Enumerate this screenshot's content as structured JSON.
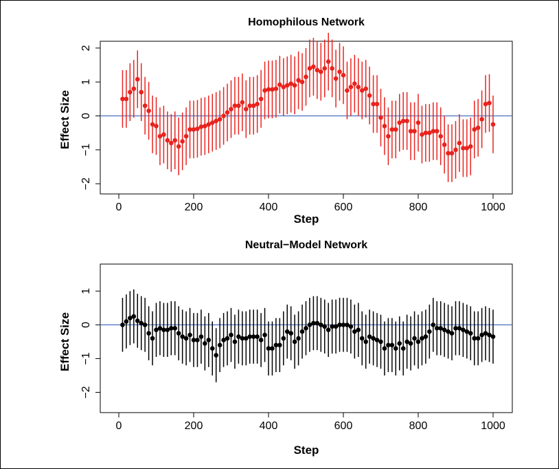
{
  "colors": {
    "border": "#000000",
    "zero_line": "#4a6fc0",
    "panel1_series": "#e8231e",
    "panel2_series": "#000000"
  },
  "chart_data": [
    {
      "type": "scatter",
      "title": "Homophilous Network",
      "xlabel": "Step",
      "ylabel": "Effect Size",
      "xlim": [
        0,
        1000
      ],
      "ylim": [
        -2.3,
        2.2
      ],
      "xticks": [
        "0",
        "200",
        "400",
        "600",
        "800",
        "1000"
      ],
      "yticks": [
        "2",
        "1",
        "0",
        "−1",
        "−2"
      ],
      "grid": false,
      "reference_line_y": 0,
      "error_half_width": 0.85,
      "x": [
        10,
        20,
        30,
        40,
        50,
        60,
        70,
        80,
        90,
        100,
        110,
        120,
        130,
        140,
        150,
        160,
        170,
        180,
        190,
        200,
        210,
        220,
        230,
        240,
        250,
        260,
        270,
        280,
        290,
        300,
        310,
        320,
        330,
        340,
        350,
        360,
        370,
        380,
        390,
        400,
        410,
        420,
        430,
        440,
        450,
        460,
        470,
        480,
        490,
        500,
        510,
        520,
        530,
        540,
        550,
        560,
        570,
        580,
        590,
        600,
        610,
        620,
        630,
        640,
        650,
        660,
        670,
        680,
        690,
        700,
        710,
        720,
        730,
        740,
        750,
        760,
        770,
        780,
        790,
        800,
        810,
        820,
        830,
        840,
        850,
        860,
        870,
        880,
        890,
        900,
        910,
        920,
        930,
        940,
        950,
        960,
        970,
        980,
        990,
        1000
      ],
      "y": [
        0.5,
        0.5,
        0.7,
        0.8,
        1.08,
        0.7,
        0.3,
        0.15,
        -0.25,
        -0.3,
        -0.6,
        -0.55,
        -0.72,
        -0.8,
        -0.72,
        -0.9,
        -0.75,
        -0.6,
        -0.4,
        -0.4,
        -0.38,
        -0.32,
        -0.3,
        -0.25,
        -0.2,
        -0.15,
        -0.1,
        0.0,
        0.1,
        0.2,
        0.3,
        0.3,
        0.4,
        0.2,
        0.3,
        0.3,
        0.35,
        0.5,
        0.75,
        0.78,
        0.78,
        0.8,
        0.92,
        0.85,
        0.9,
        0.95,
        0.9,
        1.05,
        1.0,
        1.15,
        1.4,
        1.45,
        1.35,
        1.3,
        1.4,
        1.6,
        1.4,
        1.1,
        1.3,
        1.2,
        0.75,
        0.85,
        0.95,
        0.85,
        0.75,
        0.8,
        0.6,
        0.35,
        0.35,
        -0.05,
        -0.3,
        -0.6,
        -0.4,
        -0.4,
        -0.2,
        -0.15,
        -0.15,
        -0.45,
        -0.45,
        -0.2,
        -0.55,
        -0.5,
        -0.5,
        -0.45,
        -0.45,
        -0.6,
        -0.85,
        -1.1,
        -1.1,
        -1.0,
        -0.8,
        -0.95,
        -0.95,
        -0.9,
        -0.4,
        -0.35,
        -0.1,
        0.35,
        0.38,
        -0.25
      ]
    },
    {
      "type": "scatter",
      "title": "Neutral−Model Network",
      "xlabel": "Step",
      "ylabel": "Effect Size",
      "xlim": [
        0,
        1000
      ],
      "ylim": [
        -2.6,
        1.8
      ],
      "xticks": [
        "0",
        "200",
        "400",
        "600",
        "800",
        "1000"
      ],
      "yticks": [
        "1",
        "0",
        "−1",
        "−2"
      ],
      "grid": false,
      "reference_line_y": 0,
      "error_half_width": 0.8,
      "x": [
        10,
        20,
        30,
        40,
        50,
        60,
        70,
        80,
        90,
        100,
        110,
        120,
        130,
        140,
        150,
        160,
        170,
        180,
        190,
        200,
        210,
        220,
        230,
        240,
        250,
        260,
        270,
        280,
        290,
        300,
        310,
        320,
        330,
        340,
        350,
        360,
        370,
        380,
        390,
        400,
        410,
        420,
        430,
        440,
        450,
        460,
        470,
        480,
        490,
        500,
        510,
        520,
        530,
        540,
        550,
        560,
        570,
        580,
        590,
        600,
        610,
        620,
        630,
        640,
        650,
        660,
        670,
        680,
        690,
        700,
        710,
        720,
        730,
        740,
        750,
        760,
        770,
        780,
        790,
        800,
        810,
        820,
        830,
        840,
        850,
        860,
        870,
        880,
        890,
        900,
        910,
        920,
        930,
        940,
        950,
        960,
        970,
        980,
        990,
        1000
      ],
      "y": [
        0.0,
        0.1,
        0.2,
        0.25,
        0.12,
        0.05,
        0.0,
        -0.25,
        -0.4,
        -0.15,
        -0.1,
        -0.15,
        -0.15,
        -0.1,
        -0.1,
        -0.25,
        -0.35,
        -0.4,
        -0.3,
        -0.45,
        -0.45,
        -0.35,
        -0.55,
        -0.45,
        -0.7,
        -0.9,
        -0.6,
        -0.45,
        -0.4,
        -0.3,
        -0.5,
        -0.35,
        -0.4,
        -0.4,
        -0.35,
        -0.35,
        -0.35,
        -0.45,
        -0.3,
        -0.7,
        -0.7,
        -0.6,
        -0.6,
        -0.4,
        -0.2,
        -0.25,
        -0.5,
        -0.4,
        -0.2,
        -0.1,
        0.0,
        0.05,
        0.05,
        0.0,
        -0.05,
        -0.15,
        -0.05,
        -0.05,
        0.0,
        0.0,
        0.0,
        -0.05,
        -0.2,
        -0.15,
        -0.4,
        -0.5,
        -0.35,
        -0.4,
        -0.45,
        -0.5,
        -0.7,
        -0.6,
        -0.6,
        -0.7,
        -0.55,
        -0.7,
        -0.5,
        -0.55,
        -0.4,
        -0.5,
        -0.4,
        -0.35,
        -0.2,
        0.0,
        -0.1,
        -0.1,
        -0.15,
        -0.2,
        -0.25,
        -0.1,
        -0.1,
        -0.15,
        -0.2,
        -0.25,
        -0.4,
        -0.4,
        -0.3,
        -0.25,
        -0.3,
        -0.35
      ]
    }
  ]
}
